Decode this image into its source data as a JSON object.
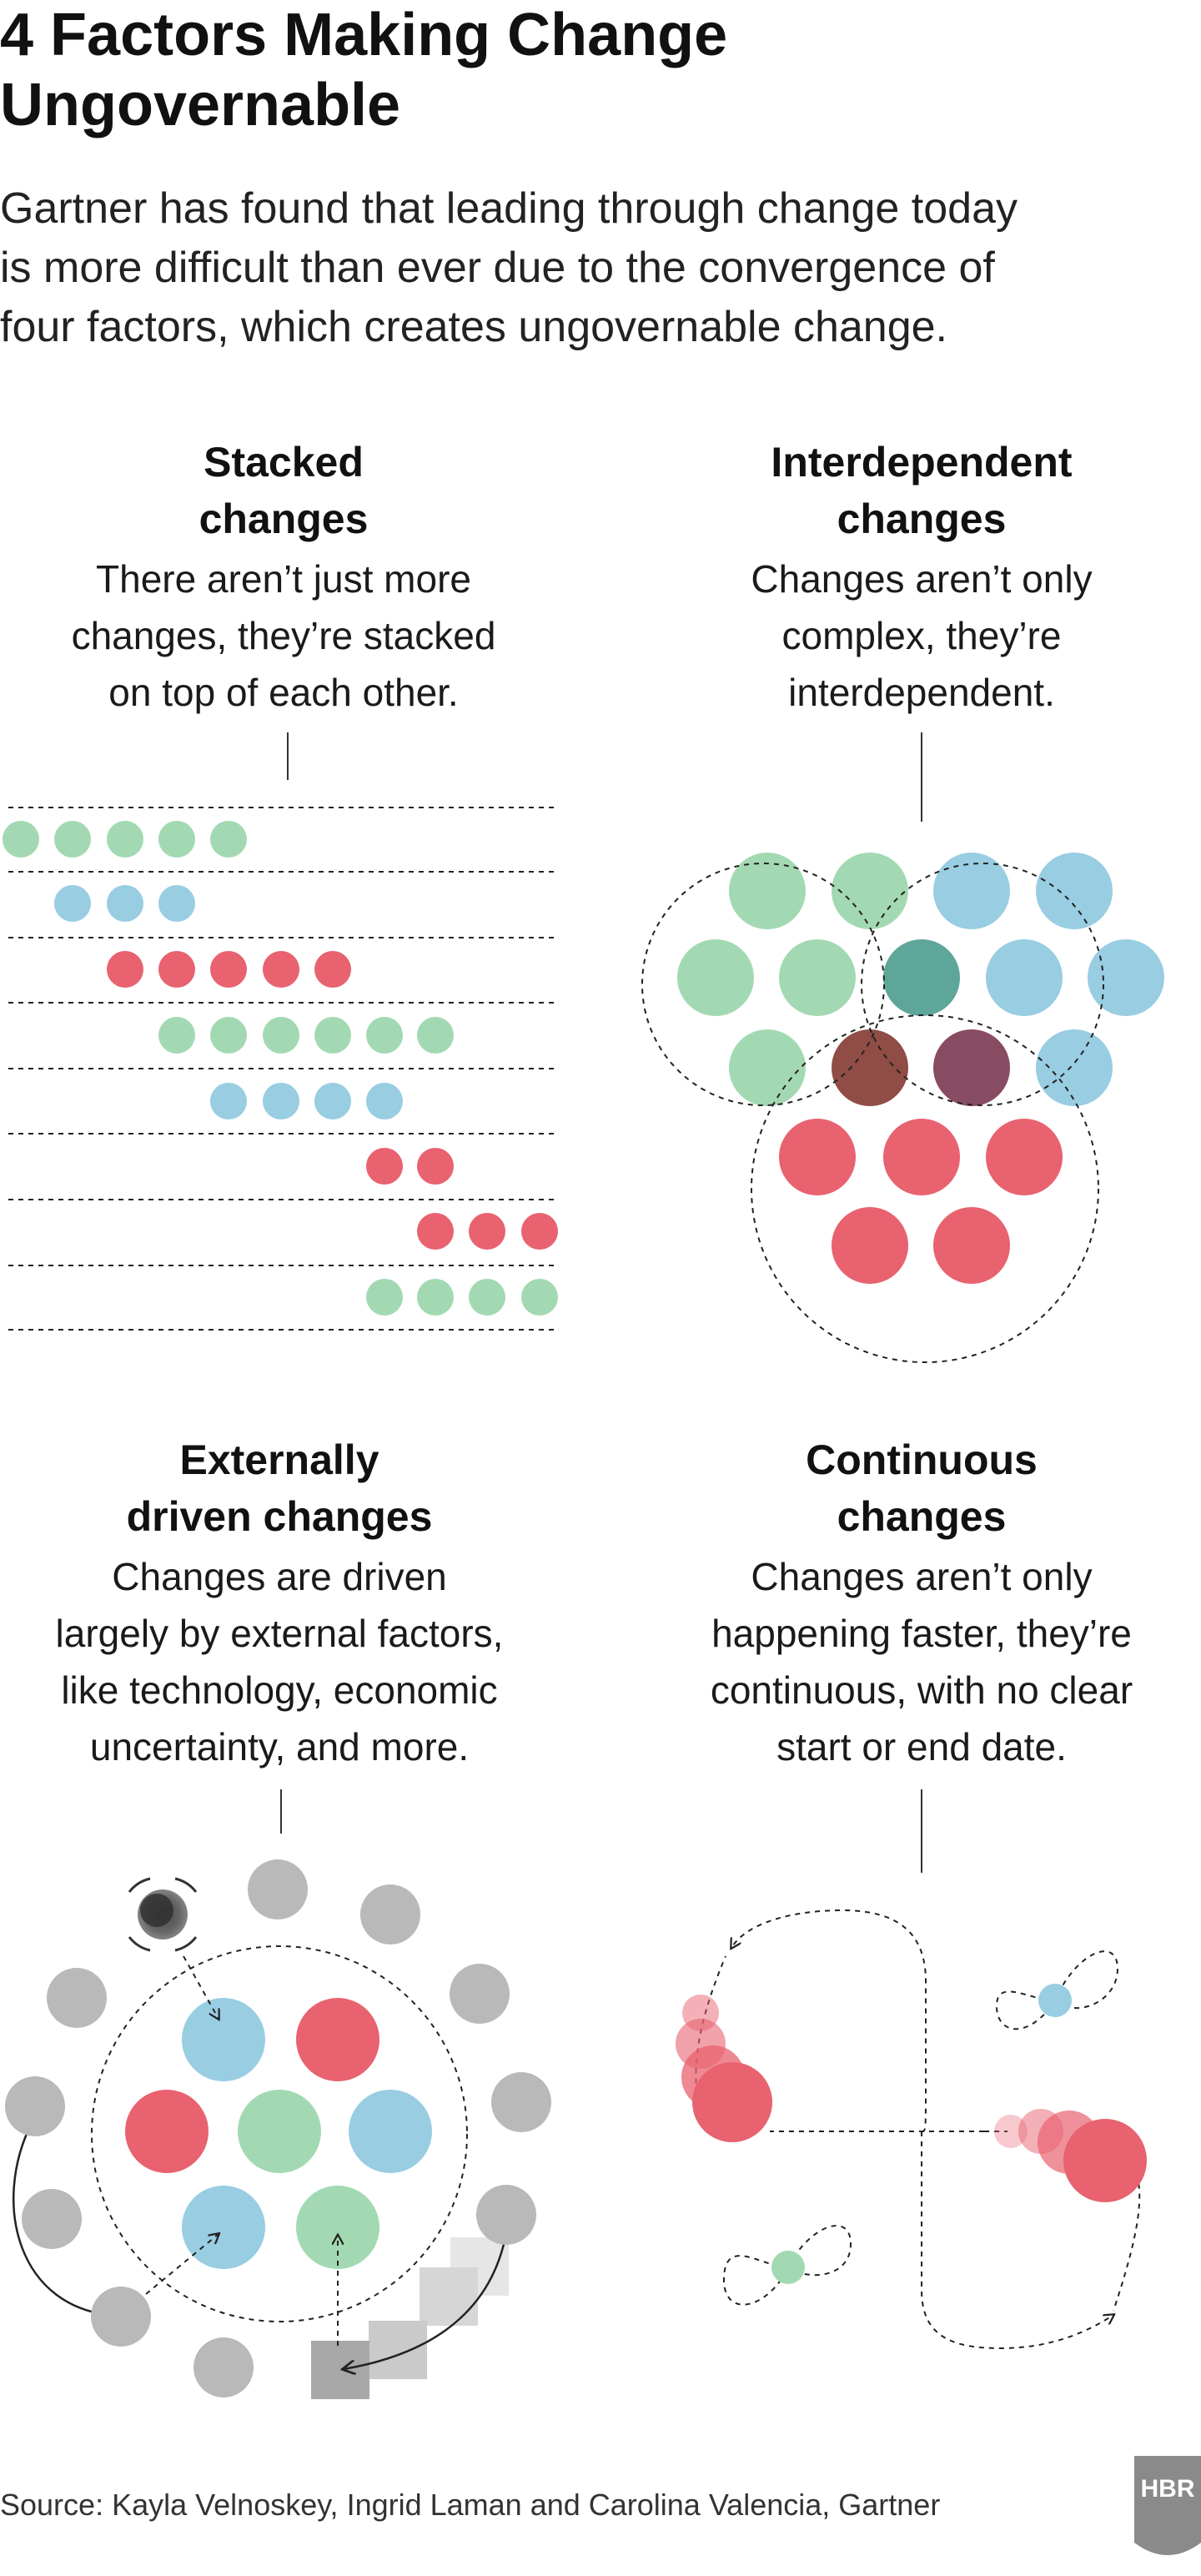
{
  "title": "4 Factors Making Change\nUngovernable",
  "subtitle": "Gartner has found that leading through change today\nis more difficult than ever due to the convergence of\nfour factors, which creates ungovernable change.",
  "sections": [
    {
      "title": "Stacked\nchanges",
      "description": "There aren’t just more\nchanges, they’re stacked\non top of each other."
    },
    {
      "title": "Interdependent\nchanges",
      "description": "Changes aren’t only\ncomplex, they’re\ninterdependent."
    },
    {
      "title": "Externally\ndriven changes",
      "description": "Changes are driven\nlargely by external factors,\nlike technology, economic\nuncertainty, and more."
    },
    {
      "title": "Continuous\nchanges",
      "description": "Changes aren’t only\nhappening faster, they’re\ncontinuous, with no clear\nstart or end date."
    }
  ],
  "source": "Source: Kayla Velnoskey, Ingrid Laman and Carolina Valencia, Gartner",
  "logo": "HBR",
  "colors": {
    "green": "#a3d9b2",
    "blue": "#98cde2",
    "red": "#e8626f",
    "gray": "#b9b9b9",
    "teal": "#5fa69a",
    "brown": "#8f4d45",
    "purple": "#874b62",
    "text": "#111111",
    "logo_gray": "#8a8a8a"
  }
}
